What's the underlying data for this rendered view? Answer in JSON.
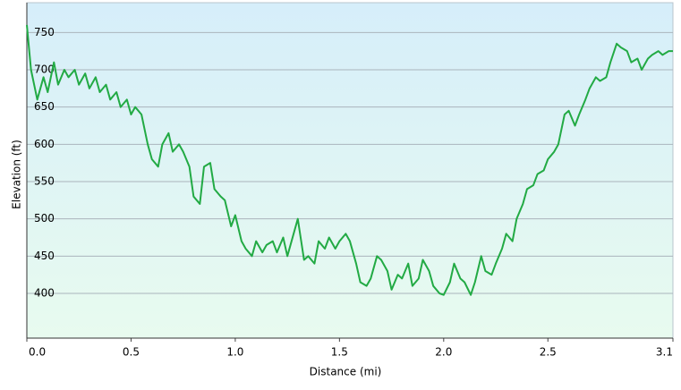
{
  "chart_data": {
    "type": "line",
    "x_label": "Distance   (mi)",
    "y_label": "Elevation (ft)",
    "x": [
      0,
      0.02,
      0.05,
      0.08,
      0.1,
      0.13,
      0.15,
      0.18,
      0.2,
      0.23,
      0.25,
      0.28,
      0.3,
      0.33,
      0.35,
      0.38,
      0.4,
      0.43,
      0.45,
      0.48,
      0.5,
      0.52,
      0.55,
      0.58,
      0.6,
      0.63,
      0.65,
      0.68,
      0.7,
      0.73,
      0.75,
      0.78,
      0.8,
      0.83,
      0.85,
      0.88,
      0.9,
      0.93,
      0.95,
      0.98,
      1.0,
      1.03,
      1.05,
      1.08,
      1.1,
      1.13,
      1.15,
      1.18,
      1.2,
      1.23,
      1.25,
      1.28,
      1.3,
      1.33,
      1.35,
      1.38,
      1.4,
      1.43,
      1.45,
      1.48,
      1.5,
      1.53,
      1.55,
      1.58,
      1.6,
      1.63,
      1.65,
      1.68,
      1.7,
      1.73,
      1.75,
      1.78,
      1.8,
      1.83,
      1.85,
      1.88,
      1.9,
      1.93,
      1.95,
      1.98,
      2.0,
      2.03,
      2.05,
      2.08,
      2.1,
      2.13,
      2.15,
      2.18,
      2.2,
      2.23,
      2.25,
      2.28,
      2.3,
      2.33,
      2.35,
      2.38,
      2.4,
      2.43,
      2.45,
      2.48,
      2.5,
      2.53,
      2.55,
      2.58,
      2.6,
      2.63,
      2.65,
      2.68,
      2.7,
      2.73,
      2.75,
      2.78,
      2.8,
      2.83,
      2.85,
      2.88,
      2.9,
      2.93,
      2.95,
      2.98,
      3.0,
      3.03,
      3.05,
      3.08,
      3.1
    ],
    "series": [
      {
        "color": "#22aa44",
        "values": [
          760,
          700,
          660,
          690,
          670,
          710,
          680,
          700,
          690,
          700,
          680,
          695,
          675,
          690,
          670,
          680,
          660,
          670,
          650,
          660,
          640,
          650,
          640,
          600,
          580,
          570,
          600,
          615,
          590,
          600,
          590,
          570,
          530,
          520,
          570,
          575,
          540,
          530,
          525,
          490,
          505,
          470,
          460,
          450,
          470,
          455,
          465,
          470,
          455,
          475,
          450,
          480,
          500,
          445,
          450,
          440,
          470,
          460,
          475,
          460,
          470,
          480,
          470,
          440,
          415,
          410,
          420,
          450,
          445,
          430,
          405,
          425,
          420,
          440,
          410,
          420,
          445,
          430,
          410,
          400,
          398,
          415,
          440,
          420,
          415,
          398,
          415,
          450,
          430,
          425,
          440,
          460,
          480,
          470,
          500,
          520,
          540,
          545,
          560,
          565,
          580,
          590,
          600,
          640,
          645,
          625,
          640,
          660,
          675,
          690,
          685,
          690,
          710,
          735,
          730,
          725,
          710,
          715,
          700,
          715,
          720,
          725,
          720,
          725,
          725
        ]
      }
    ],
    "xlim": [
      0,
      3.1
    ],
    "ylim": [
      340,
      790
    ],
    "xticks": [
      {
        "value": 0,
        "label": "0.0"
      },
      0.5,
      {
        "value": 1,
        "label": "1.0"
      },
      1.5,
      {
        "value": 2,
        "label": "2.0"
      },
      2.5,
      3.1
    ],
    "yticks": [
      400,
      450,
      500,
      550,
      600,
      650,
      700,
      750
    ],
    "grid": true
  }
}
